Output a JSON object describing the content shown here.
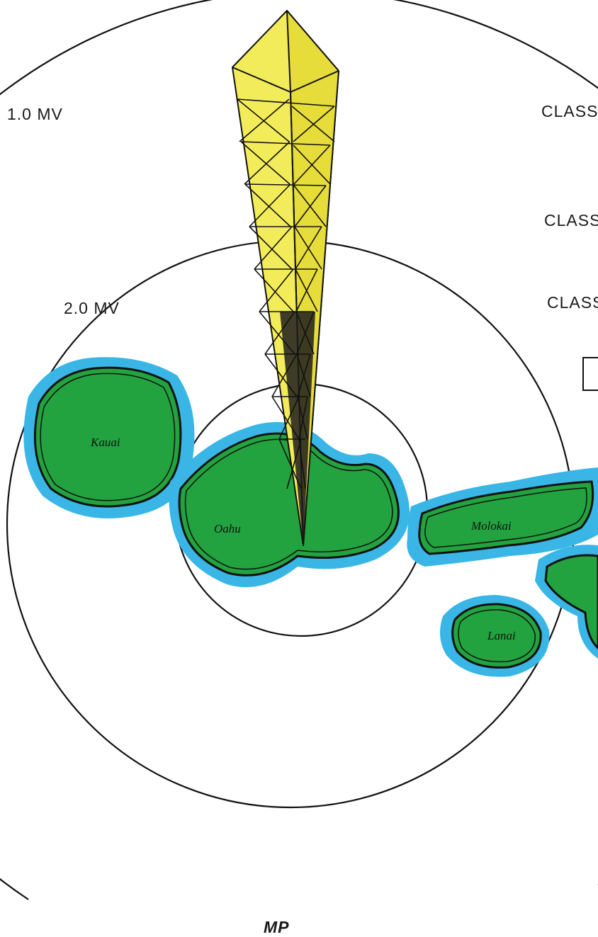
{
  "map": {
    "contour_labels": {
      "outer": "1.0 MV",
      "middle": "2.0 MV"
    },
    "class_labels": [
      "CLASS",
      "CLASS",
      "CLASS"
    ],
    "bottom_label": "MP",
    "islands": [
      {
        "id": "kauai",
        "name": "Kauai"
      },
      {
        "id": "oahu",
        "name": "Oahu"
      },
      {
        "id": "molokai",
        "name": "Molokai"
      },
      {
        "id": "lanai",
        "name": "Lanai"
      }
    ],
    "colors": {
      "land": "#22a33f",
      "water_halo": "#39b6e6",
      "tower": "#f3ec5a",
      "contour": "#111111"
    },
    "icons": [
      "radio-tower-icon"
    ]
  }
}
